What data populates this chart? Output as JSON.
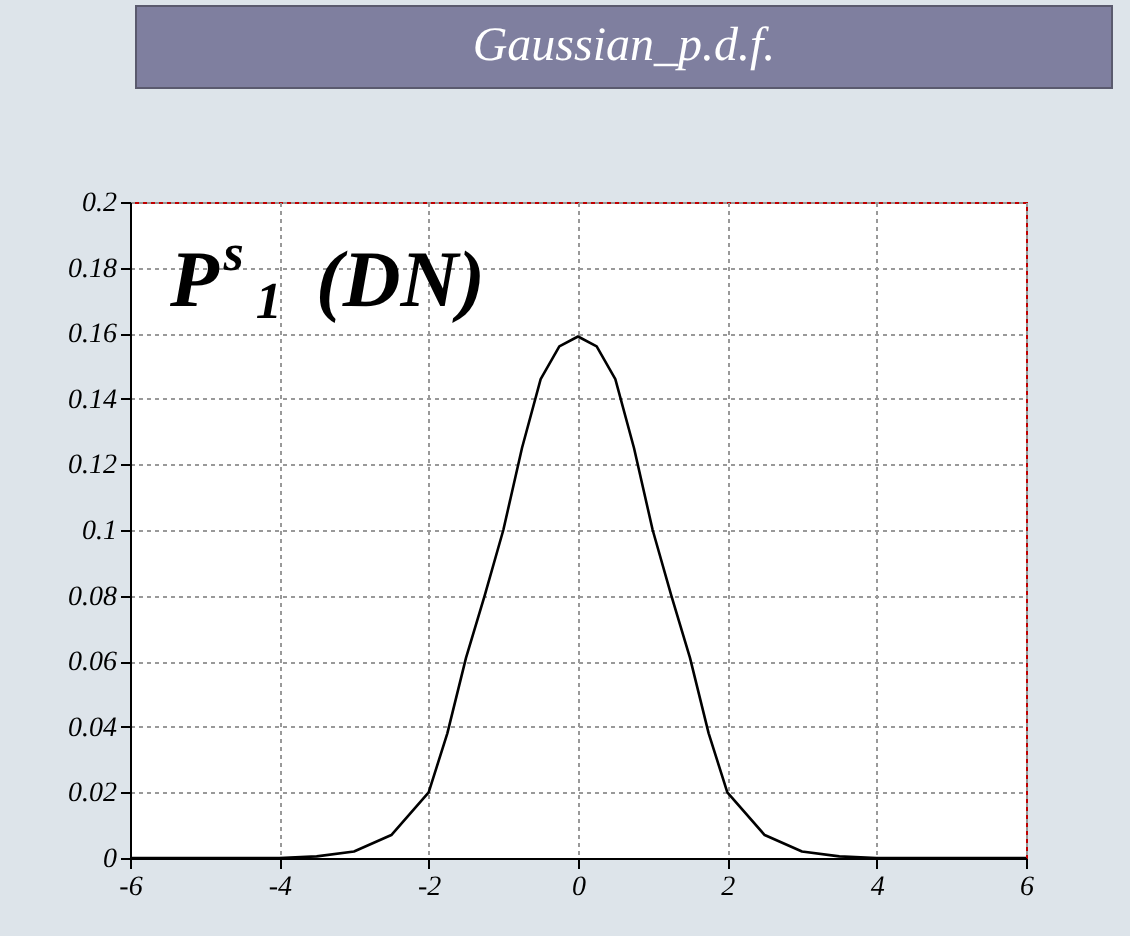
{
  "chart_data": {
    "type": "line",
    "title": "Gaussian_p.d.f.",
    "annotations": [
      "P$^{s}$$_{1}$ (DN)"
    ],
    "x": [
      -6,
      -5,
      -4,
      -3.5,
      -3,
      -2.5,
      -2,
      -1.75,
      -1.5,
      -1.25,
      -1,
      -0.75,
      -0.5,
      -0.25,
      0,
      0.25,
      0.5,
      0.75,
      1,
      1.25,
      1.5,
      1.75,
      2,
      2.5,
      3,
      3.5,
      4,
      5,
      6
    ],
    "series": [
      {
        "color": "#000000",
        "values": [
          0,
          0,
          0,
          0.0005,
          0.002,
          0.007,
          0.02,
          0.038,
          0.061,
          0.08,
          0.1,
          0.125,
          0.146,
          0.156,
          0.159,
          0.156,
          0.146,
          0.125,
          0.1,
          0.08,
          0.061,
          0.038,
          0.02,
          0.007,
          0.002,
          0.0005,
          0,
          0,
          0
        ]
      }
    ],
    "xlim": [
      -6,
      6
    ],
    "xticks": [
      -6,
      -4,
      -2,
      0,
      2,
      4,
      6
    ],
    "ylim": [
      0,
      0.2
    ],
    "yticks": [
      0,
      0.02,
      0.04,
      0.06,
      0.08,
      0.1,
      0.12,
      0.14,
      0.16,
      0.18,
      0.2
    ],
    "grid": true,
    "legend": false,
    "line_style": "solid"
  }
}
